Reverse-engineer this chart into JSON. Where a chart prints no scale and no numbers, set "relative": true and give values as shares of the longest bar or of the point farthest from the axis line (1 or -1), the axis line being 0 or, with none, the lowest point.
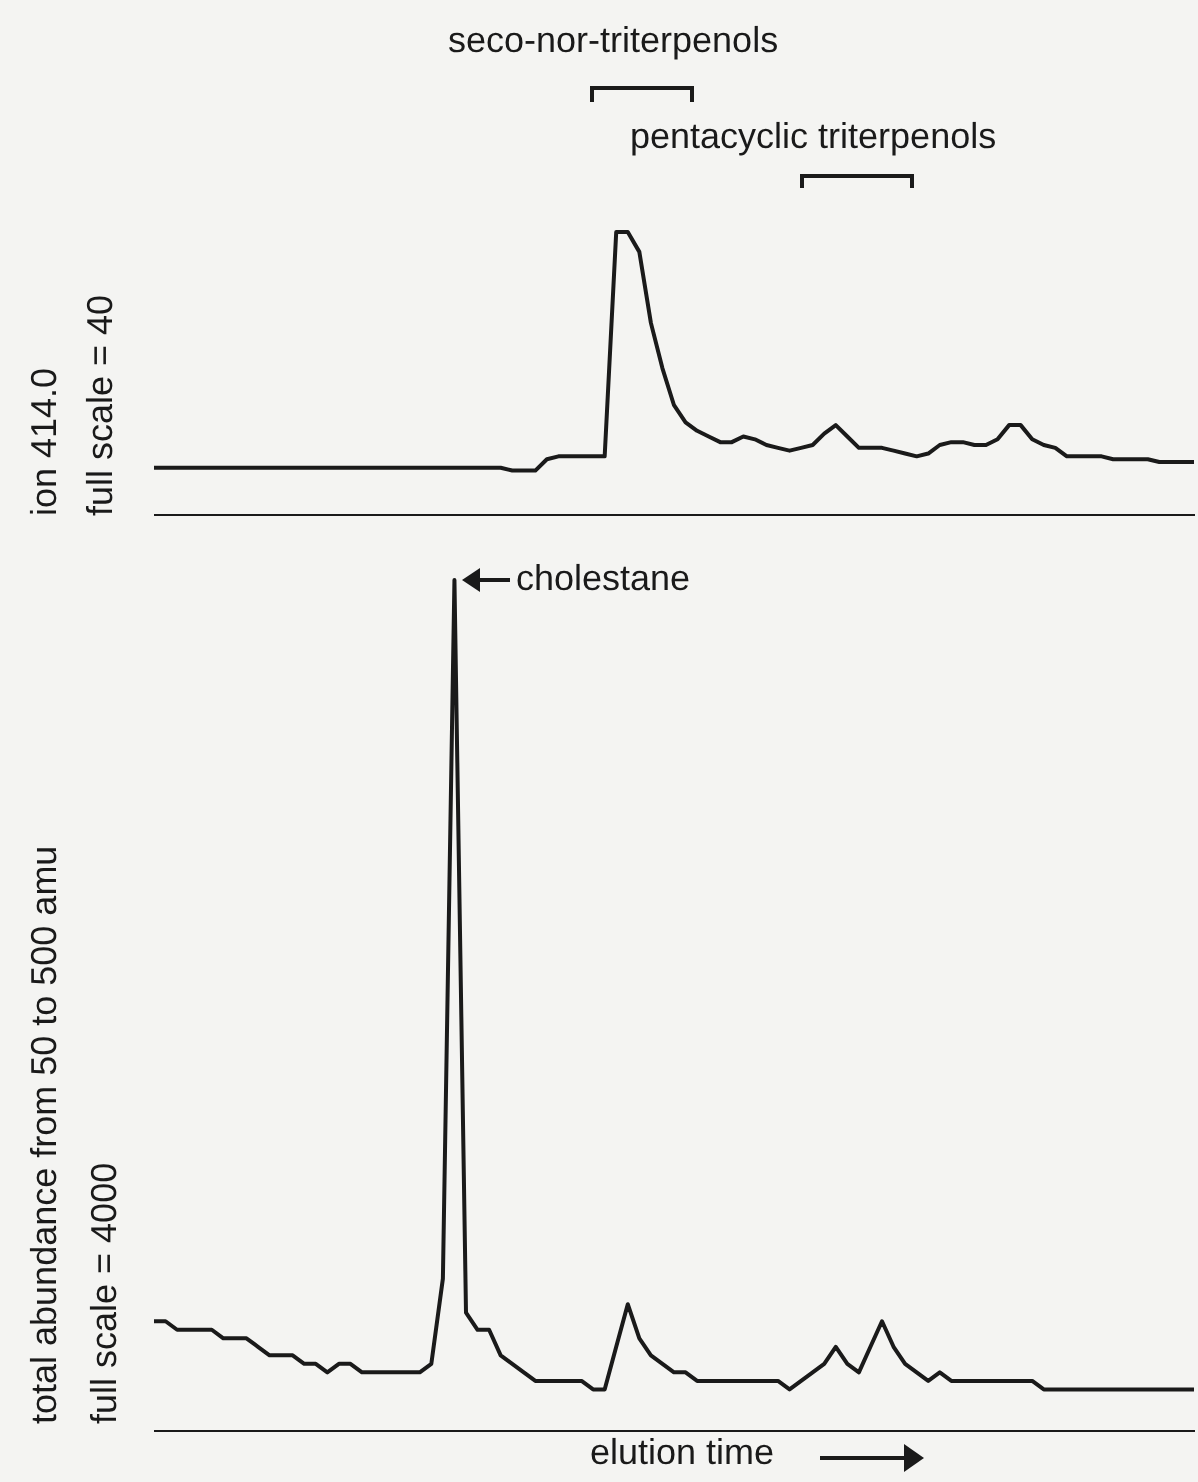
{
  "chart_data": [
    {
      "type": "line",
      "categories": [
        null,
        null,
        null,
        null,
        null,
        null,
        null,
        null,
        null,
        null,
        null,
        null,
        null,
        null,
        null,
        null,
        null,
        null,
        null,
        null,
        null,
        null,
        null,
        null,
        null,
        null,
        null,
        null,
        null,
        null,
        null,
        null,
        null,
        null,
        null,
        null,
        null,
        null,
        null,
        null,
        null,
        null,
        null,
        null,
        null,
        null,
        null,
        null,
        null,
        null,
        null,
        null,
        null,
        null,
        null,
        null,
        null,
        null,
        null,
        null,
        null,
        null,
        null,
        null,
        null,
        null,
        null,
        null,
        null,
        null,
        null,
        null,
        null,
        null,
        null,
        null,
        null,
        null,
        null,
        null,
        null,
        null,
        null,
        null,
        null,
        null,
        null,
        null,
        null,
        null,
        null
      ],
      "series": [
        {
          "color": "#1a1a1a",
          "values": [
            0.17,
            0.17,
            0.17,
            0.17,
            0.17,
            0.17,
            0.17,
            0.17,
            0.17,
            0.17,
            0.17,
            0.17,
            0.17,
            0.17,
            0.17,
            0.17,
            0.17,
            0.17,
            0.17,
            0.17,
            0.17,
            0.17,
            0.17,
            0.17,
            0.17,
            0.17,
            0.17,
            0.17,
            0.17,
            0.17,
            0.17,
            0.16,
            0.16,
            0.16,
            0.2,
            0.21,
            0.21,
            0.21,
            0.21,
            0.21,
            1.0,
            1.0,
            0.93,
            0.68,
            0.52,
            0.39,
            0.33,
            0.3,
            0.28,
            0.26,
            0.26,
            0.28,
            0.27,
            0.25,
            0.24,
            0.23,
            0.24,
            0.25,
            0.29,
            0.32,
            0.28,
            0.24,
            0.24,
            0.24,
            0.23,
            0.22,
            0.21,
            0.22,
            0.25,
            0.26,
            0.26,
            0.25,
            0.25,
            0.27,
            0.32,
            0.32,
            0.27,
            0.25,
            0.24,
            0.21,
            0.21,
            0.21,
            0.21,
            0.2,
            0.2,
            0.2,
            0.2,
            0.19,
            0.19,
            0.19,
            0.19
          ]
        }
      ],
      "relative": true,
      "tick_labels": false,
      "ylabel": "ion 414.0",
      "annotations": [
        "seco-nor-triterpenols",
        "pentacyclic triterpenols",
        "full scale = 40"
      ]
    },
    {
      "type": "line",
      "categories": [
        null,
        null,
        null,
        null,
        null,
        null,
        null,
        null,
        null,
        null,
        null,
        null,
        null,
        null,
        null,
        null,
        null,
        null,
        null,
        null,
        null,
        null,
        null,
        null,
        null,
        null,
        null,
        null,
        null,
        null,
        null,
        null,
        null,
        null,
        null,
        null,
        null,
        null,
        null,
        null,
        null,
        null,
        null,
        null,
        null,
        null,
        null,
        null,
        null,
        null,
        null,
        null,
        null,
        null,
        null,
        null,
        null,
        null,
        null,
        null,
        null,
        null,
        null,
        null,
        null,
        null,
        null,
        null,
        null,
        null,
        null,
        null,
        null,
        null,
        null,
        null,
        null,
        null,
        null,
        null,
        null,
        null,
        null,
        null,
        null,
        null,
        null,
        null,
        null,
        null,
        null
      ],
      "series": [
        {
          "color": "#1a1a1a",
          "values": [
            0.13,
            0.13,
            0.12,
            0.12,
            0.12,
            0.12,
            0.11,
            0.11,
            0.11,
            0.1,
            0.09,
            0.09,
            0.09,
            0.08,
            0.08,
            0.07,
            0.08,
            0.08,
            0.07,
            0.07,
            0.07,
            0.07,
            0.07,
            0.07,
            0.08,
            0.18,
            1.0,
            0.14,
            0.12,
            0.12,
            0.09,
            0.08,
            0.07,
            0.06,
            0.06,
            0.06,
            0.06,
            0.06,
            0.05,
            0.05,
            0.1,
            0.15,
            0.11,
            0.09,
            0.08,
            0.07,
            0.07,
            0.06,
            0.06,
            0.06,
            0.06,
            0.06,
            0.06,
            0.06,
            0.06,
            0.05,
            0.06,
            0.07,
            0.08,
            0.1,
            0.08,
            0.07,
            0.1,
            0.13,
            0.1,
            0.08,
            0.07,
            0.06,
            0.07,
            0.06,
            0.06,
            0.06,
            0.06,
            0.06,
            0.06,
            0.06,
            0.06,
            0.05,
            0.05,
            0.05,
            0.05,
            0.05,
            0.05,
            0.05,
            0.05,
            0.05,
            0.05,
            0.05,
            0.05,
            0.05,
            0.05
          ]
        }
      ],
      "relative": true,
      "tick_labels": false,
      "ylabel": "total abundance from 50 to 500 amu",
      "xlabel": "elution time",
      "annotations": [
        "cholestane",
        "full scale = 4000"
      ]
    }
  ]
}
